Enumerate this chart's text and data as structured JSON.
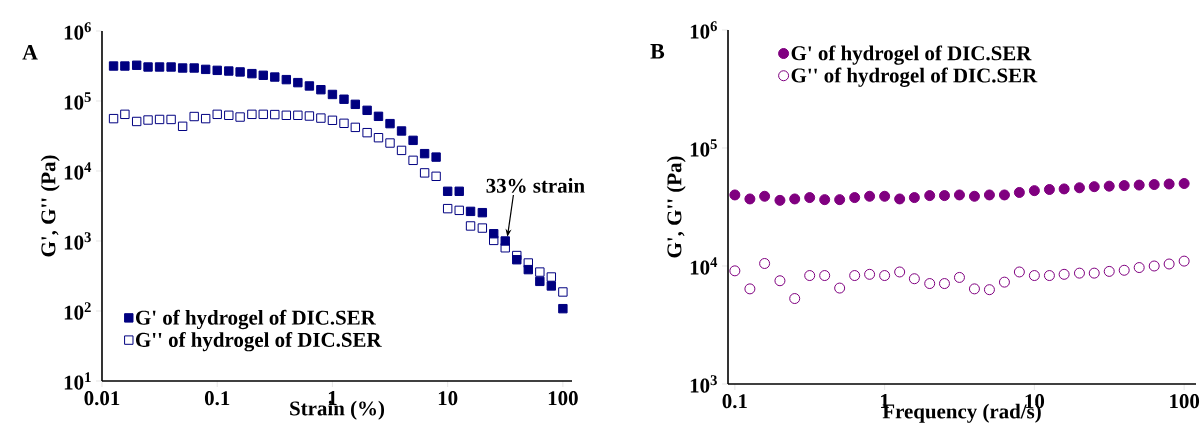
{
  "chart_data": [
    {
      "type": "scatter",
      "title": "A",
      "xlabel": "Strain (%)",
      "ylabel": "G', G'' (Pa)",
      "log": "xy",
      "legend": "bottom left",
      "marker": "square",
      "xlim": [
        0.01,
        120
      ],
      "ylim": [
        10,
        1000000
      ],
      "xticks": [
        0.01,
        0.1,
        1,
        10,
        100
      ],
      "yticks": [
        {
          "value": 10,
          "label": "10$^{1}$"
        },
        {
          "value": 100,
          "label": "10$^{2}$"
        },
        {
          "value": 1000,
          "label": "10$^{3}$"
        },
        {
          "value": 10000,
          "label": "10$^{4}$"
        },
        {
          "value": 100000,
          "label": "10$^{5}$"
        },
        {
          "value": 1000000,
          "label": "10$^{6}$"
        }
      ],
      "annotations": [
        {
          "text": "33% strain",
          "x": 33,
          "y": 1000
        }
      ],
      "x": [
        0.0126,
        0.0158,
        0.02,
        0.0251,
        0.0316,
        0.0398,
        0.0501,
        0.0631,
        0.0794,
        0.1,
        0.126,
        0.158,
        0.2,
        0.251,
        0.316,
        0.398,
        0.501,
        0.631,
        0.794,
        1,
        1.26,
        1.58,
        2,
        2.51,
        3.16,
        3.98,
        5.01,
        6.31,
        7.94,
        10,
        12.6,
        15.8,
        20,
        25.1,
        31.6,
        39.8,
        50.1,
        63.1,
        79.4,
        100
      ],
      "series": [
        {
          "name": "G' of hydrogel of DIC.SER",
          "color": "#000080",
          "values": [
            316000,
            316000,
            324000,
            306000,
            306000,
            306000,
            296000,
            296000,
            283000,
            274000,
            268000,
            260000,
            246000,
            233000,
            220000,
            202000,
            183000,
            164000,
            145000,
            124000,
            106000,
            89600,
            73600,
            60400,
            47500,
            37300,
            27400,
            17700,
            15800,
            5130,
            5130,
            2650,
            2540,
            1270,
            1000,
            540,
            390,
            265,
            228,
            108
          ]
        },
        {
          "name": "G'' of hydrogel of DIC.SER",
          "color": "#000080",
          "values": [
            56000,
            64500,
            51000,
            53500,
            54500,
            54500,
            43500,
            60000,
            56000,
            64500,
            62500,
            59000,
            64500,
            64500,
            64000,
            62500,
            62500,
            61000,
            57000,
            53000,
            48000,
            42000,
            35300,
            29900,
            25100,
            19700,
            14200,
            9400,
            8400,
            2900,
            2740,
            1640,
            1530,
            1020,
            800,
            620,
            485,
            360,
            306,
            187
          ]
        }
      ]
    },
    {
      "type": "scatter",
      "title": "B",
      "xlabel": "Frequency (rad/s)",
      "ylabel": "G', G'' (Pa)",
      "log": "xy",
      "legend": "top left",
      "marker": "circle",
      "xlim": [
        0.09,
        120
      ],
      "ylim": [
        1000,
        1000000
      ],
      "xticks": [
        0.1,
        1,
        10,
        100
      ],
      "yticks": [
        {
          "value": 1000,
          "label": "10$^{3}$"
        },
        {
          "value": 10000,
          "label": "10$^{4}$"
        },
        {
          "value": 100000,
          "label": "10$^{5}$"
        },
        {
          "value": 1000000,
          "label": "10$^{6}$"
        }
      ],
      "x": [
        0.1,
        0.126,
        0.158,
        0.2,
        0.251,
        0.316,
        0.398,
        0.501,
        0.631,
        0.794,
        1,
        1.26,
        1.58,
        2,
        2.51,
        3.16,
        3.98,
        5.01,
        6.31,
        7.94,
        10,
        12.6,
        15.8,
        20,
        25.1,
        31.6,
        39.8,
        50.1,
        63.1,
        79.4,
        100
      ],
      "series": [
        {
          "name": "G' of hydrogel of DIC.SER",
          "color": "#800080",
          "values": [
            40000,
            37000,
            39000,
            36000,
            37000,
            38000,
            36500,
            36500,
            38000,
            39000,
            39000,
            37000,
            38000,
            39500,
            39500,
            40000,
            39000,
            40000,
            40000,
            42000,
            43500,
            44500,
            45000,
            46000,
            47000,
            47500,
            48000,
            48500,
            49000,
            49500,
            50000
          ]
        },
        {
          "name": "G'' of hydrogel of DIC.SER",
          "color": "#800080",
          "values": [
            9100,
            6400,
            10500,
            7500,
            5300,
            8300,
            8300,
            6500,
            8300,
            8500,
            8300,
            8900,
            7800,
            7100,
            7100,
            8000,
            6400,
            6300,
            7300,
            8900,
            8300,
            8300,
            8500,
            8700,
            8700,
            9000,
            9200,
            9700,
            10000,
            10400,
            11000
          ]
        }
      ]
    }
  ]
}
